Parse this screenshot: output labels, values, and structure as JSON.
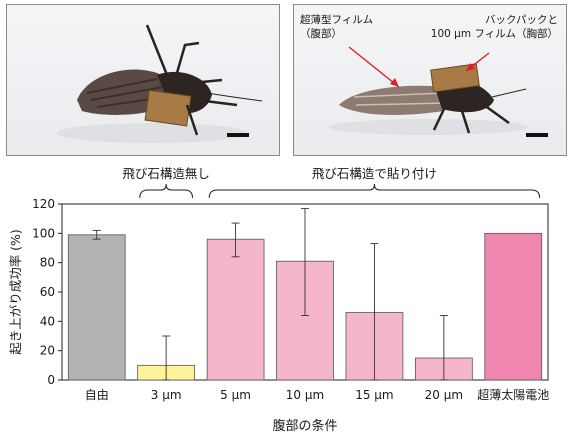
{
  "photos": {
    "right": {
      "callout_film_line1": "超薄型フィルム",
      "callout_film_line2": "（腹部）",
      "callout_pack_line1": "バックパックと",
      "callout_pack_line2": "100 μm フィルム（胸部）"
    }
  },
  "chart_data": {
    "type": "bar",
    "categories": [
      "自由",
      "3 μm",
      "5 μm",
      "10 μm",
      "15 μm",
      "20 μm",
      "超薄太陽電池"
    ],
    "values": [
      99,
      10,
      96,
      81,
      46,
      15,
      100
    ],
    "error_low": [
      96,
      0,
      84,
      44,
      0,
      0,
      100
    ],
    "error_high": [
      102,
      30,
      107,
      117,
      93,
      44,
      100
    ],
    "colors": [
      "#b2b2b2",
      "#fdf39a",
      "#f5b5cd",
      "#f5b5cd",
      "#f5b5cd",
      "#f5b5cd",
      "#ee86b0"
    ],
    "ylabel": "起き上がり成功率 (%)",
    "xlabel": "腹部の条件",
    "ylim": [
      0,
      120
    ],
    "yticks": [
      0,
      20,
      40,
      60,
      80,
      100,
      120
    ],
    "grid": false,
    "brackets": [
      {
        "label": "飛び石構造無し",
        "from": 1,
        "to": 1
      },
      {
        "label": "飛び石構造で貼り付け",
        "from": 2,
        "to": 6
      }
    ]
  }
}
